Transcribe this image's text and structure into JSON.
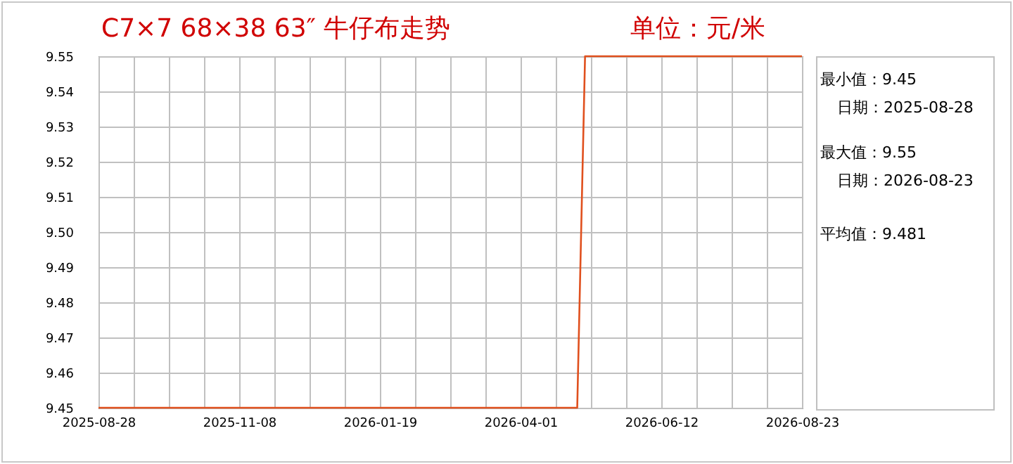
{
  "chart_data": {
    "type": "line",
    "title": "C7×7 68×38 63″ 牛仔布走势",
    "subtitle": "单位：元/米",
    "x": [
      "2025-08-28",
      "2026-04-30",
      "2026-05-04",
      "2026-08-23"
    ],
    "values": [
      9.45,
      9.45,
      9.55,
      9.55
    ],
    "color": "#e0501e",
    "xlim": [
      "2025-08-28",
      "2026-08-23"
    ],
    "xticks": [
      "2025-08-28",
      {
        "value": "2025-09-15",
        "label": null
      },
      {
        "value": "2025-10-03",
        "label": null
      },
      {
        "value": "2025-10-21",
        "label": null
      },
      "2025-11-08",
      {
        "value": "2025-11-26",
        "label": null
      },
      {
        "value": "2025-12-14",
        "label": null
      },
      {
        "value": "2026-01-01",
        "label": null
      },
      "2026-01-19",
      {
        "value": "2026-02-06",
        "label": null
      },
      {
        "value": "2026-02-24",
        "label": null
      },
      {
        "value": "2026-03-14",
        "label": null
      },
      "2026-04-01",
      {
        "value": "2026-04-19",
        "label": null
      },
      {
        "value": "2026-05-07",
        "label": null
      },
      {
        "value": "2026-05-25",
        "label": null
      },
      "2026-06-12",
      {
        "value": "2026-06-30",
        "label": null
      },
      {
        "value": "2026-07-18",
        "label": null
      },
      {
        "value": "2026-08-05",
        "label": null
      },
      "2026-08-23"
    ],
    "ylim": [
      9.45,
      9.55
    ],
    "yticks": [
      9.45,
      9.46,
      9.47,
      9.48,
      9.49,
      {
        "value": 9.5,
        "label": "9.50"
      },
      9.51,
      9.52,
      9.53,
      9.54,
      9.55
    ],
    "grid": true,
    "annotations": [
      "最小值：9.45",
      "日期：2025-08-28",
      "最大值：9.55",
      "日期：2026-08-23",
      "平均值：9.481"
    ]
  }
}
